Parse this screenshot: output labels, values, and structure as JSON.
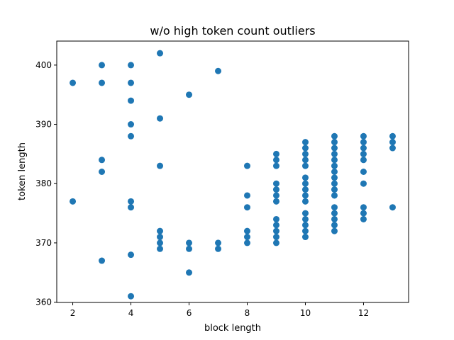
{
  "chart_data": {
    "type": "scatter",
    "title": "w/o high token count outliers",
    "xlabel": "block length",
    "ylabel": "token length",
    "xlim": [
      1.45,
      13.55
    ],
    "ylim": [
      359.95,
      404.05
    ],
    "xticks": [
      2,
      4,
      6,
      8,
      10,
      12
    ],
    "yticks": [
      360,
      370,
      380,
      390,
      400
    ],
    "grid": false,
    "marker_color": "#1f77b4",
    "series": [
      {
        "points": [
          [
            2,
            397
          ],
          [
            2,
            377
          ],
          [
            3,
            400
          ],
          [
            3,
            397
          ],
          [
            3,
            384
          ],
          [
            3,
            382
          ],
          [
            3,
            367
          ],
          [
            4,
            400
          ],
          [
            4,
            397
          ],
          [
            4,
            394
          ],
          [
            4,
            390
          ],
          [
            4,
            388
          ],
          [
            4,
            377
          ],
          [
            4,
            376
          ],
          [
            4,
            368
          ],
          [
            4,
            361
          ],
          [
            5,
            402
          ],
          [
            5,
            391
          ],
          [
            5,
            383
          ],
          [
            5,
            372
          ],
          [
            5,
            371
          ],
          [
            5,
            370
          ],
          [
            5,
            369
          ],
          [
            6,
            395
          ],
          [
            6,
            370
          ],
          [
            6,
            369
          ],
          [
            6,
            365
          ],
          [
            7,
            399
          ],
          [
            7,
            370
          ],
          [
            7,
            369
          ],
          [
            8,
            383
          ],
          [
            8,
            378
          ],
          [
            8,
            376
          ],
          [
            8,
            372
          ],
          [
            8,
            371
          ],
          [
            8,
            370
          ],
          [
            9,
            385
          ],
          [
            9,
            384
          ],
          [
            9,
            383
          ],
          [
            9,
            380
          ],
          [
            9,
            379
          ],
          [
            9,
            378
          ],
          [
            9,
            377
          ],
          [
            9,
            374
          ],
          [
            9,
            373
          ],
          [
            9,
            372
          ],
          [
            9,
            371
          ],
          [
            9,
            370
          ],
          [
            10,
            387
          ],
          [
            10,
            386
          ],
          [
            10,
            385
          ],
          [
            10,
            384
          ],
          [
            10,
            383
          ],
          [
            10,
            381
          ],
          [
            10,
            380
          ],
          [
            10,
            379
          ],
          [
            10,
            378
          ],
          [
            10,
            377
          ],
          [
            10,
            375
          ],
          [
            10,
            374
          ],
          [
            10,
            373
          ],
          [
            10,
            372
          ],
          [
            10,
            371
          ],
          [
            11,
            388
          ],
          [
            11,
            387
          ],
          [
            11,
            386
          ],
          [
            11,
            385
          ],
          [
            11,
            384
          ],
          [
            11,
            383
          ],
          [
            11,
            382
          ],
          [
            11,
            381
          ],
          [
            11,
            380
          ],
          [
            11,
            379
          ],
          [
            11,
            378
          ],
          [
            11,
            376
          ],
          [
            11,
            375
          ],
          [
            11,
            374
          ],
          [
            11,
            373
          ],
          [
            11,
            372
          ],
          [
            12,
            388
          ],
          [
            12,
            387
          ],
          [
            12,
            386
          ],
          [
            12,
            385
          ],
          [
            12,
            384
          ],
          [
            12,
            382
          ],
          [
            12,
            380
          ],
          [
            12,
            376
          ],
          [
            12,
            375
          ],
          [
            12,
            374
          ],
          [
            13,
            388
          ],
          [
            13,
            387
          ],
          [
            13,
            386
          ],
          [
            13,
            376
          ]
        ]
      }
    ]
  }
}
